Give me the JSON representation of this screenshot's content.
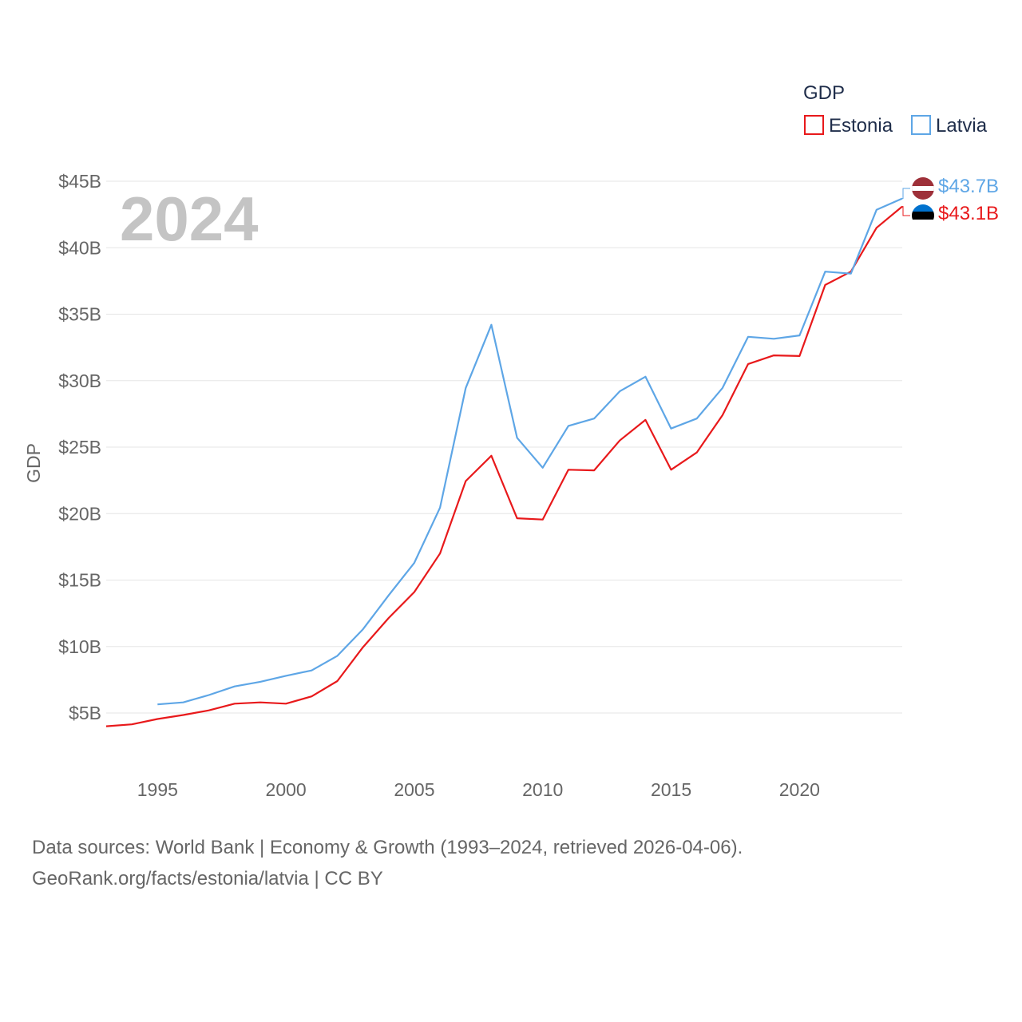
{
  "chart_data": {
    "type": "line",
    "title": "",
    "year_label": "2024",
    "ylabel": "GDP",
    "xlabel": "",
    "ylim": [
      2000000000,
      46000000000
    ],
    "xlim": [
      1993,
      2024
    ],
    "y_ticks": [
      5000000000,
      10000000000,
      15000000000,
      20000000000,
      25000000000,
      30000000000,
      35000000000,
      40000000000,
      45000000000
    ],
    "y_tick_labels": [
      "$5B",
      "$10B",
      "$15B",
      "$20B",
      "$25B",
      "$30B",
      "$35B",
      "$40B",
      "$45B"
    ],
    "x_ticks": [
      1995,
      2000,
      2005,
      2010,
      2015,
      2020
    ],
    "x_tick_labels": [
      "1995",
      "2000",
      "2005",
      "2010",
      "2015",
      "2020"
    ],
    "legend": {
      "title": "GDP",
      "position": "top-right"
    },
    "series": [
      {
        "name": "Estonia",
        "color": "#e8191b",
        "end_label": "$43.1B",
        "flag": "estonia-flag",
        "x": [
          1993,
          1994,
          1995,
          1996,
          1997,
          1998,
          1999,
          2000,
          2001,
          2002,
          2003,
          2004,
          2005,
          2006,
          2007,
          2008,
          2009,
          2010,
          2011,
          2012,
          2013,
          2014,
          2015,
          2016,
          2017,
          2018,
          2019,
          2020,
          2021,
          2022,
          2023,
          2024
        ],
        "values": [
          4000000000,
          4150000000,
          4550000000,
          4850000000,
          5200000000,
          5700000000,
          5800000000,
          5700000000,
          6250000000,
          7400000000,
          9950000000,
          12150000000,
          14100000000,
          17000000000,
          22450000000,
          24350000000,
          19650000000,
          19550000000,
          23300000000,
          23250000000,
          25500000000,
          27050000000,
          23300000000,
          24600000000,
          27400000000,
          31250000000,
          31900000000,
          31850000000,
          37200000000,
          38200000000,
          41500000000,
          43100000000
        ]
      },
      {
        "name": "Latvia",
        "color": "#5ea6e6",
        "end_label": "$43.7B",
        "flag": "latvia-flag",
        "x": [
          1995,
          1996,
          1997,
          1998,
          1999,
          2000,
          2001,
          2002,
          2003,
          2004,
          2005,
          2006,
          2007,
          2008,
          2009,
          2010,
          2011,
          2012,
          2013,
          2014,
          2015,
          2016,
          2017,
          2018,
          2019,
          2020,
          2021,
          2022,
          2023,
          2024
        ],
        "values": [
          5650000000,
          5800000000,
          6350000000,
          7000000000,
          7350000000,
          7800000000,
          8200000000,
          9300000000,
          11300000000,
          13850000000,
          16300000000,
          20450000000,
          29450000000,
          34200000000,
          25700000000,
          23450000000,
          26600000000,
          27150000000,
          29200000000,
          30300000000,
          26400000000,
          27150000000,
          29450000000,
          33300000000,
          33150000000,
          33400000000,
          38200000000,
          38050000000,
          42850000000,
          43700000000
        ]
      }
    ]
  },
  "footer": {
    "source_line1": "Data sources: World Bank | Economy & Growth (1993–2024, retrieved 2026-04-06).",
    "source_line2": "GeoRank.org/facts/estonia/latvia | CC BY"
  }
}
